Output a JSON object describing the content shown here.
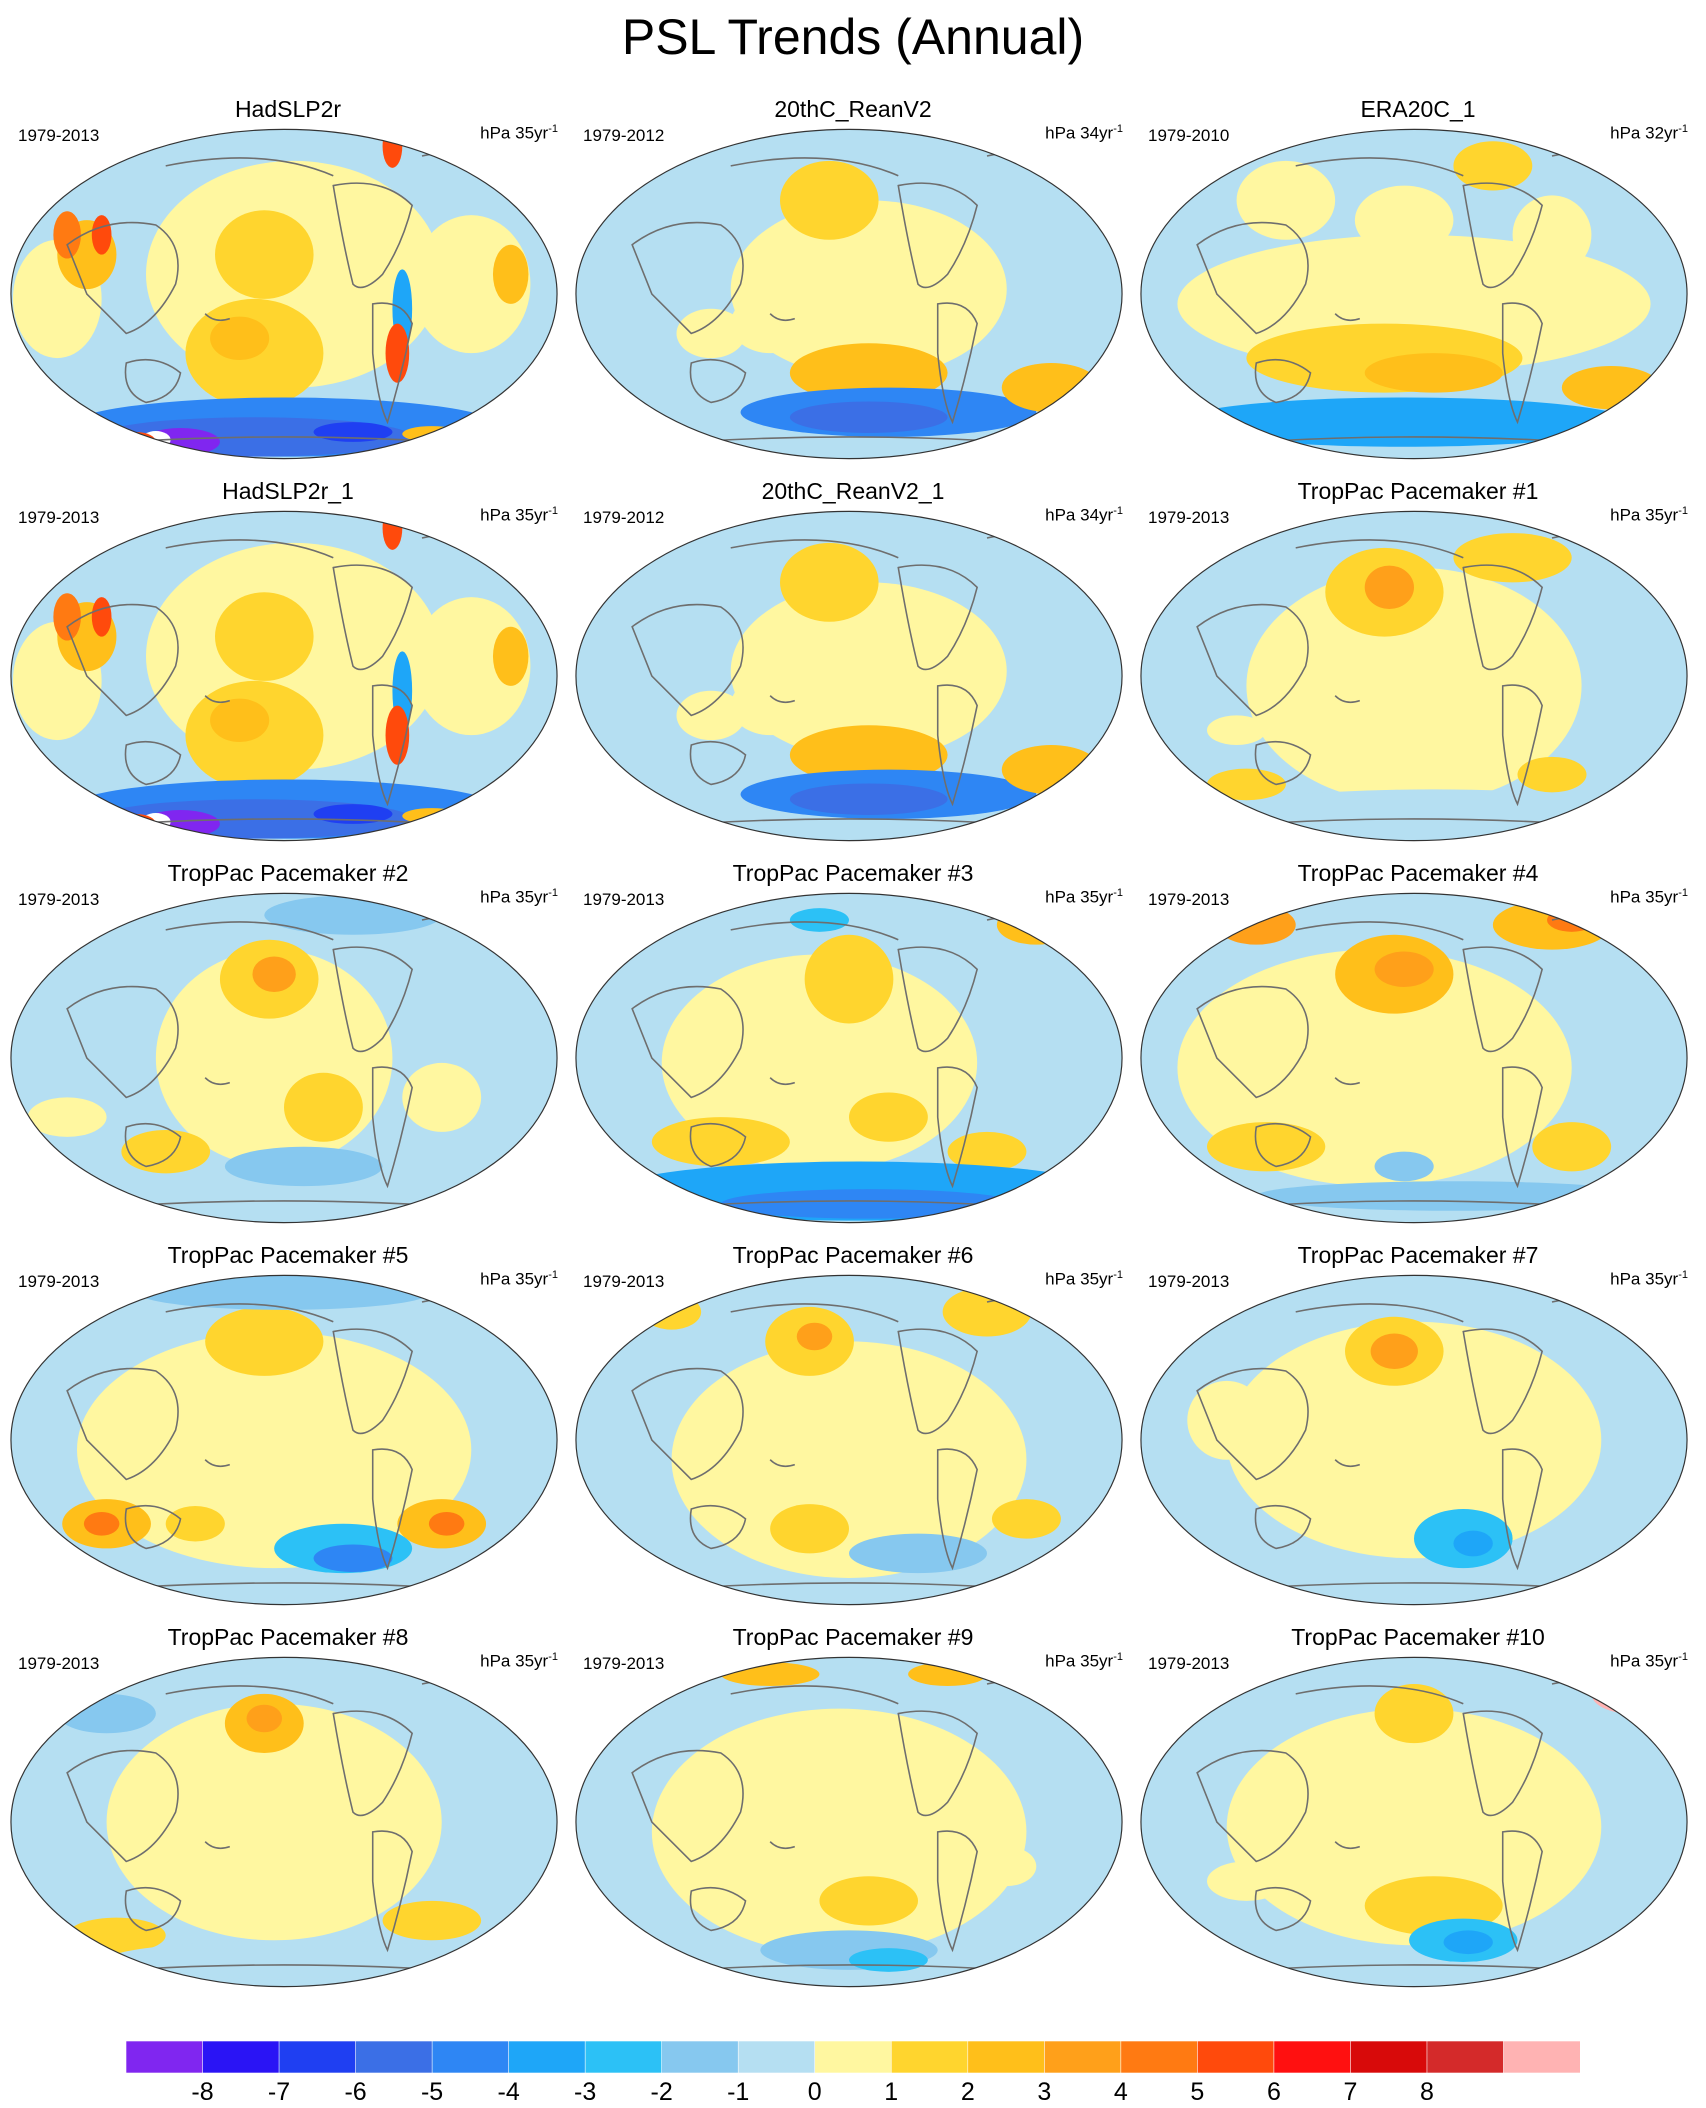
{
  "title": "PSL Trends (Annual)",
  "units_base": "hPa",
  "panels": [
    {
      "name": "HadSLP2r",
      "period": "1979-2013",
      "units_years": "35",
      "pattern": "hadslp"
    },
    {
      "name": "20thC_ReanV2",
      "period": "1979-2012",
      "units_years": "34",
      "pattern": "rean"
    },
    {
      "name": "ERA20C_1",
      "period": "1979-2010",
      "units_years": "32",
      "pattern": "era"
    },
    {
      "name": "HadSLP2r_1",
      "period": "1979-2013",
      "units_years": "35",
      "pattern": "hadslp"
    },
    {
      "name": "20thC_ReanV2_1",
      "period": "1979-2012",
      "units_years": "34",
      "pattern": "rean"
    },
    {
      "name": "TropPac Pacemaker #1",
      "period": "1979-2013",
      "units_years": "35",
      "pattern": "pace1"
    },
    {
      "name": "TropPac Pacemaker #2",
      "period": "1979-2013",
      "units_years": "35",
      "pattern": "pace2"
    },
    {
      "name": "TropPac Pacemaker #3",
      "period": "1979-2013",
      "units_years": "35",
      "pattern": "pace3"
    },
    {
      "name": "TropPac Pacemaker #4",
      "period": "1979-2013",
      "units_years": "35",
      "pattern": "pace4"
    },
    {
      "name": "TropPac Pacemaker #5",
      "period": "1979-2013",
      "units_years": "35",
      "pattern": "pace5"
    },
    {
      "name": "TropPac Pacemaker #6",
      "period": "1979-2013",
      "units_years": "35",
      "pattern": "pace6"
    },
    {
      "name": "TropPac Pacemaker #7",
      "period": "1979-2013",
      "units_years": "35",
      "pattern": "pace7"
    },
    {
      "name": "TropPac Pacemaker #8",
      "period": "1979-2013",
      "units_years": "35",
      "pattern": "pace8"
    },
    {
      "name": "TropPac Pacemaker #9",
      "period": "1979-2013",
      "units_years": "35",
      "pattern": "pace9"
    },
    {
      "name": "TropPac Pacemaker #10",
      "period": "1979-2013",
      "units_years": "35",
      "pattern": "pace10"
    }
  ],
  "colorbar": {
    "colors": [
      "#8026f0",
      "#2a14f5",
      "#1f3ff2",
      "#3b6fe6",
      "#2e86f4",
      "#1ea6f8",
      "#2cc1f6",
      "#86c8ef",
      "#b5dff2",
      "#fff7a0",
      "#ffd52e",
      "#ffbf1a",
      "#ffa01a",
      "#ff7a12",
      "#ff4a0c",
      "#ff1010",
      "#d80a0a",
      "#d42a2a",
      "#ffb3b3"
    ],
    "labels": [
      "-8",
      "-7",
      "-6",
      "-5",
      "-4",
      "-3",
      "-2",
      "-1",
      "0",
      "1",
      "2",
      "3",
      "4",
      "5",
      "6",
      "7",
      "8"
    ]
  }
}
